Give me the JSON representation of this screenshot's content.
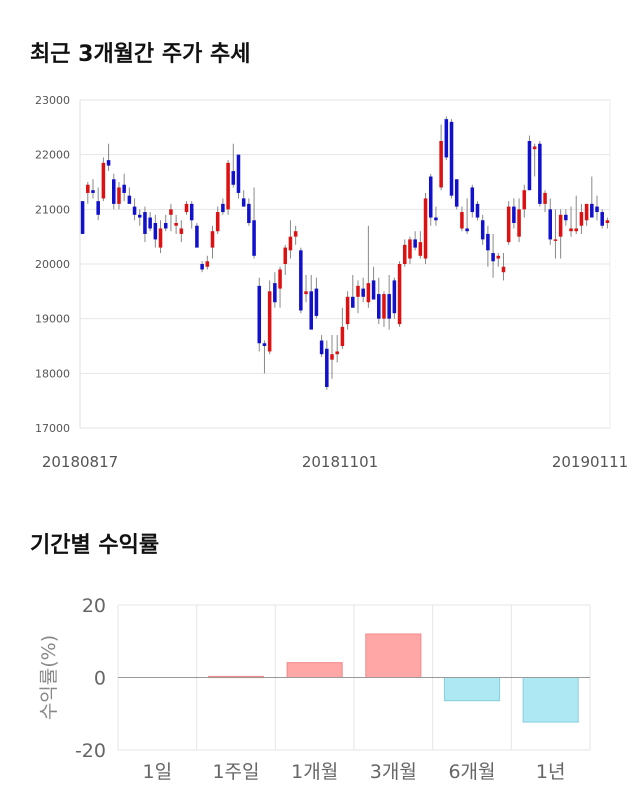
{
  "titles": {
    "price_trend": "최근 3개월간 주가 추세",
    "period_returns": "기간별 수익률"
  },
  "colors": {
    "up": "#dd1111",
    "down": "#1111cc",
    "wick": "#888888",
    "bar_positive_fill": "#ffa6a6",
    "bar_positive_stroke": "#f08a8a",
    "bar_negative_fill": "#aee8f2",
    "bar_negative_stroke": "#86d0de"
  },
  "chart_data": [
    {
      "type": "candlestick",
      "title": "최근 3개월간 주가 추세",
      "ylim": [
        17000,
        23000
      ],
      "yticks": [
        17000,
        18000,
        19000,
        20000,
        21000,
        22000,
        23000
      ],
      "xticks": [
        "20180817",
        "20181101",
        "20190111"
      ],
      "grid": true,
      "ohlc": [
        [
          21150,
          21150,
          20550,
          20550
        ],
        [
          21300,
          21500,
          21100,
          21450
        ],
        [
          21350,
          21550,
          21200,
          21300
        ],
        [
          21150,
          21400,
          20800,
          20900
        ],
        [
          21200,
          21950,
          21150,
          21850
        ],
        [
          21900,
          22200,
          21700,
          21800
        ],
        [
          21550,
          21650,
          21000,
          21100
        ],
        [
          21100,
          21500,
          21000,
          21400
        ],
        [
          21450,
          21650,
          21150,
          21300
        ],
        [
          21250,
          21400,
          21100,
          21100
        ],
        [
          21050,
          21200,
          20800,
          20900
        ],
        [
          20900,
          21000,
          20700,
          20850
        ],
        [
          20950,
          21050,
          20400,
          20550
        ],
        [
          20850,
          20950,
          20600,
          20650
        ],
        [
          20750,
          20900,
          20300,
          20450
        ],
        [
          20300,
          20800,
          20200,
          20650
        ],
        [
          20750,
          20900,
          20600,
          20650
        ],
        [
          20900,
          21100,
          20600,
          21000
        ],
        [
          20700,
          20900,
          20550,
          20750
        ],
        [
          20550,
          20800,
          20400,
          20650
        ],
        [
          20950,
          21150,
          20900,
          21100
        ],
        [
          21100,
          21150,
          20650,
          20800
        ],
        [
          20700,
          20750,
          20300,
          20300
        ],
        [
          20000,
          20050,
          19850,
          19900
        ],
        [
          19950,
          20150,
          19900,
          20050
        ],
        [
          20300,
          20700,
          20100,
          20600
        ],
        [
          20600,
          21050,
          20550,
          20950
        ],
        [
          21100,
          21200,
          20900,
          20950
        ],
        [
          21000,
          21900,
          20900,
          21850
        ],
        [
          21700,
          22200,
          21400,
          21450
        ],
        [
          22000,
          22000,
          21200,
          21300
        ],
        [
          21200,
          21350,
          21050,
          21050
        ],
        [
          21100,
          21200,
          20700,
          20750
        ],
        [
          20800,
          21400,
          20100,
          20150
        ],
        [
          19600,
          19750,
          18400,
          18550
        ],
        [
          18550,
          18600,
          18000,
          18500
        ],
        [
          18400,
          19700,
          18350,
          19500
        ],
        [
          19650,
          19850,
          19200,
          19300
        ],
        [
          19550,
          19950,
          19200,
          19900
        ],
        [
          20000,
          20350,
          19800,
          20300
        ],
        [
          20250,
          20800,
          20100,
          20500
        ],
        [
          20500,
          20700,
          20350,
          20600
        ],
        [
          20250,
          20300,
          19100,
          19150
        ],
        [
          19450,
          19800,
          19300,
          19500
        ],
        [
          19500,
          19800,
          18800,
          18800
        ],
        [
          19550,
          19750,
          19000,
          19050
        ],
        [
          18600,
          18700,
          18300,
          18350
        ],
        [
          18450,
          18600,
          17700,
          17750
        ],
        [
          18250,
          18700,
          17900,
          18350
        ],
        [
          18350,
          18700,
          18200,
          18400
        ],
        [
          18500,
          19200,
          18450,
          18850
        ],
        [
          18900,
          19500,
          18800,
          19400
        ],
        [
          19400,
          19800,
          19200,
          19200
        ],
        [
          19400,
          19700,
          19100,
          19600
        ],
        [
          19550,
          19750,
          19300,
          19400
        ],
        [
          19300,
          20700,
          19200,
          19650
        ],
        [
          19700,
          19950,
          19350,
          19350
        ],
        [
          19450,
          19750,
          18900,
          19000
        ],
        [
          19000,
          19500,
          18850,
          19450
        ],
        [
          19450,
          19800,
          18800,
          19000
        ],
        [
          19700,
          19750,
          19000,
          19100
        ],
        [
          18900,
          20050,
          18850,
          20000
        ],
        [
          20000,
          20450,
          19950,
          20350
        ],
        [
          20100,
          20500,
          20000,
          20450
        ],
        [
          20450,
          20600,
          20250,
          20300
        ],
        [
          20150,
          20600,
          20100,
          20400
        ],
        [
          20100,
          21300,
          20000,
          21200
        ],
        [
          21600,
          21650,
          20700,
          20850
        ],
        [
          20850,
          21050,
          20700,
          20800
        ],
        [
          21400,
          22550,
          21350,
          22250
        ],
        [
          22650,
          22700,
          21900,
          21950
        ],
        [
          22600,
          22650,
          21200,
          21250
        ],
        [
          21550,
          21550,
          21000,
          21050
        ],
        [
          20650,
          21050,
          20600,
          20950
        ],
        [
          20650,
          21200,
          20550,
          20600
        ],
        [
          21400,
          21450,
          20850,
          20950
        ],
        [
          21100,
          21150,
          20800,
          20850
        ],
        [
          20800,
          20900,
          20350,
          20450
        ],
        [
          20550,
          20700,
          19950,
          20250
        ],
        [
          20200,
          20550,
          19750,
          20050
        ],
        [
          20100,
          20200,
          19950,
          20150
        ],
        [
          19850,
          20200,
          19700,
          19950
        ],
        [
          20400,
          21150,
          20350,
          21050
        ],
        [
          21050,
          21200,
          20650,
          20750
        ],
        [
          20500,
          21200,
          20400,
          21000
        ],
        [
          21000,
          21450,
          20850,
          21350
        ],
        [
          22250,
          22350,
          21350,
          21350
        ],
        [
          22100,
          22200,
          21600,
          22150
        ],
        [
          22200,
          22250,
          21050,
          21100
        ],
        [
          21100,
          21350,
          20950,
          21300
        ],
        [
          21000,
          21200,
          20350,
          20450
        ],
        [
          20450,
          21000,
          20100,
          20450
        ],
        [
          20500,
          21000,
          20100,
          20900
        ],
        [
          20900,
          21000,
          20700,
          20800
        ],
        [
          20600,
          21050,
          20500,
          20650
        ],
        [
          20600,
          21250,
          20550,
          20650
        ],
        [
          20700,
          21100,
          20550,
          20950
        ],
        [
          20800,
          21100,
          20700,
          21100
        ],
        [
          21100,
          21600,
          20900,
          20850
        ],
        [
          21050,
          21250,
          20800,
          20950
        ],
        [
          20950,
          21000,
          20650,
          20700
        ],
        [
          20750,
          20850,
          20650,
          20800
        ]
      ]
    },
    {
      "type": "bar",
      "title": "기간별 수익률",
      "ylabel": "수익률(%)",
      "ylim": [
        -20,
        20
      ],
      "yticks": [
        20,
        0,
        -20
      ],
      "categories": [
        "1일",
        "1주일",
        "1개월",
        "3개월",
        "6개월",
        "1년"
      ],
      "values": [
        0.0,
        0.3,
        4.1,
        12.0,
        -6.4,
        -12.3
      ],
      "grid": true
    }
  ]
}
